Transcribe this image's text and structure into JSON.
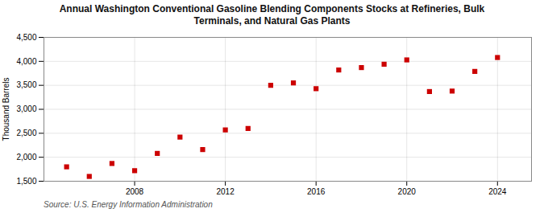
{
  "chart_data": {
    "type": "scatter",
    "title": "Annual Washington Conventional Gasoline Blending Components Stocks at Refineries, Bulk\nTerminals, and Natural Gas Plants",
    "ylabel": "Thousand Barrels",
    "source": "Source: U.S. Energy Information Administration",
    "x": [
      2005,
      2006,
      2007,
      2008,
      2009,
      2010,
      2011,
      2012,
      2013,
      2014,
      2015,
      2016,
      2017,
      2018,
      2019,
      2020,
      2021,
      2022,
      2023,
      2024
    ],
    "values": [
      1800,
      1600,
      1870,
      1720,
      2080,
      2420,
      2160,
      2570,
      2600,
      3500,
      3550,
      3430,
      3820,
      3870,
      3940,
      4030,
      3370,
      3380,
      3790,
      4080
    ],
    "xlim": [
      2004.0,
      2025.5
    ],
    "ylim": [
      1500,
      4500
    ],
    "xticks": [
      2008,
      2012,
      2016,
      2020,
      2024
    ],
    "yticks": [
      {
        "value": 1500,
        "label": "1,500"
      },
      {
        "value": 2000,
        "label": "2,000"
      },
      {
        "value": 2500,
        "label": "2,500"
      },
      {
        "value": 3000,
        "label": "3,000"
      },
      {
        "value": 3500,
        "label": "3,500"
      },
      {
        "value": 4000,
        "label": "4,000"
      },
      {
        "value": 4500,
        "label": "4,500"
      }
    ],
    "color": "#cc0000",
    "marker": "square",
    "grid": true
  }
}
